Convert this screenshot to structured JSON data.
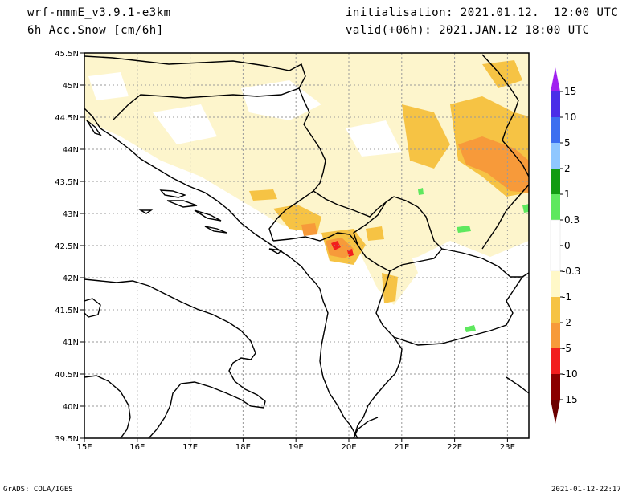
{
  "header": {
    "model": "wrf-nmmE_v3.9.1-e3km",
    "variable": "6h Acc.Snow [cm/6h]",
    "init": "initialisation: 2021.01.12.  12:00 UTC",
    "valid": "valid(+06h): 2021.JAN.12 18:00 UTC"
  },
  "footer": {
    "credit": "GrADS: COLA/IGES",
    "timestamp": "2021-01-12-22:17"
  },
  "axes": {
    "lon_labels": [
      "15E",
      "16E",
      "17E",
      "18E",
      "19E",
      "20E",
      "21E",
      "22E",
      "23E"
    ],
    "lat_labels": [
      "45.5N",
      "45N",
      "44.5N",
      "44N",
      "43.5N",
      "43N",
      "42.5N",
      "42N",
      "41.5N",
      "41N",
      "40.5N",
      "40N",
      "39.5N"
    ]
  },
  "colorbar": {
    "labels": [
      "15",
      "10",
      "5",
      "2",
      "1",
      "0.3",
      "0",
      "-0.3",
      "-1",
      "-2",
      "-5",
      "-10",
      "-15"
    ],
    "colors": [
      "#4a2ee8",
      "#3c6ff0",
      "#8fc7ff",
      "#129b12",
      "#5ee85e",
      "#ffffff",
      "#fff8c8",
      "#f6c344",
      "#f79a3a",
      "#f21e1e",
      "#c40000",
      "#8b0000"
    ],
    "top_color": "#a020f0",
    "bottom_color": "#6b0000"
  },
  "map": {
    "background_color": "#fdf5cc",
    "grid": true
  }
}
